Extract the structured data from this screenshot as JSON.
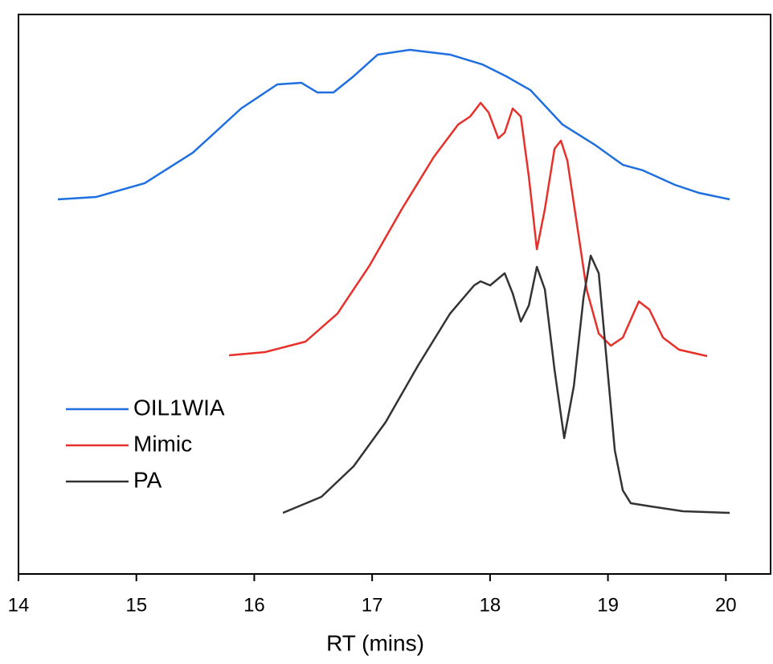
{
  "chart_data": {
    "type": "line",
    "xlabel": "RT (mins)",
    "xlim": [
      14,
      20.4
    ],
    "ylim": [
      0,
      100
    ],
    "xticks": [
      14,
      15,
      16,
      17,
      18,
      19,
      20
    ],
    "legend": "lower left",
    "series": [
      {
        "name": "OIL1WIA",
        "color": "#1f6fe0",
        "x": [
          14.334,
          14.661,
          15.07,
          15.479,
          15.888,
          16.195,
          16.399,
          16.536,
          16.672,
          16.842,
          17.047,
          17.32,
          17.661,
          17.933,
          18.138,
          18.342,
          18.615,
          18.888,
          19.126,
          19.297,
          19.569,
          19.774,
          20.033
        ],
        "values": [
          66.95,
          67.39,
          69.83,
          75.29,
          83.19,
          87.5,
          87.79,
          86.06,
          86.06,
          88.94,
          92.82,
          93.68,
          92.82,
          91.09,
          88.94,
          86.49,
          80.32,
          76.72,
          73.13,
          72.13,
          69.54,
          68.1,
          66.95
        ]
      },
      {
        "name": "Mimic",
        "color": "#e8302a",
        "x": [
          15.786,
          16.093,
          16.434,
          16.706,
          16.979,
          17.252,
          17.524,
          17.729,
          17.831,
          17.92,
          17.988,
          18.07,
          18.124,
          18.192,
          18.261,
          18.329,
          18.397,
          18.465,
          18.547,
          18.601,
          18.656,
          18.738,
          18.819,
          18.922,
          19.024,
          19.126,
          19.262,
          19.351,
          19.467,
          19.603,
          19.842
        ],
        "values": [
          39.08,
          39.66,
          41.52,
          46.55,
          55.17,
          65.23,
          74.57,
          80.32,
          81.75,
          84.2,
          82.47,
          77.87,
          78.88,
          83.19,
          81.75,
          70.98,
          58.05,
          65.23,
          76.01,
          77.44,
          73.85,
          62.36,
          50.86,
          42.96,
          40.8,
          42.24,
          48.71,
          47.27,
          42.24,
          40.09,
          38.94
        ]
      },
      {
        "name": "PA",
        "color": "#333333",
        "x": [
          16.243,
          16.57,
          16.843,
          17.115,
          17.388,
          17.661,
          17.865,
          17.92,
          18.001,
          18.124,
          18.192,
          18.261,
          18.329,
          18.397,
          18.465,
          18.547,
          18.629,
          18.711,
          18.793,
          18.854,
          18.922,
          18.99,
          19.058,
          19.126,
          19.194,
          19.365,
          19.637,
          20.033
        ],
        "values": [
          10.92,
          13.79,
          19.25,
          27.16,
          37.21,
          46.55,
          51.58,
          52.3,
          51.58,
          53.74,
          50.14,
          45.11,
          47.99,
          54.89,
          50.86,
          36.49,
          24.28,
          33.62,
          49.43,
          56.9,
          53.74,
          37.93,
          22.13,
          14.94,
          12.64,
          12.07,
          11.21,
          10.92
        ]
      }
    ]
  }
}
